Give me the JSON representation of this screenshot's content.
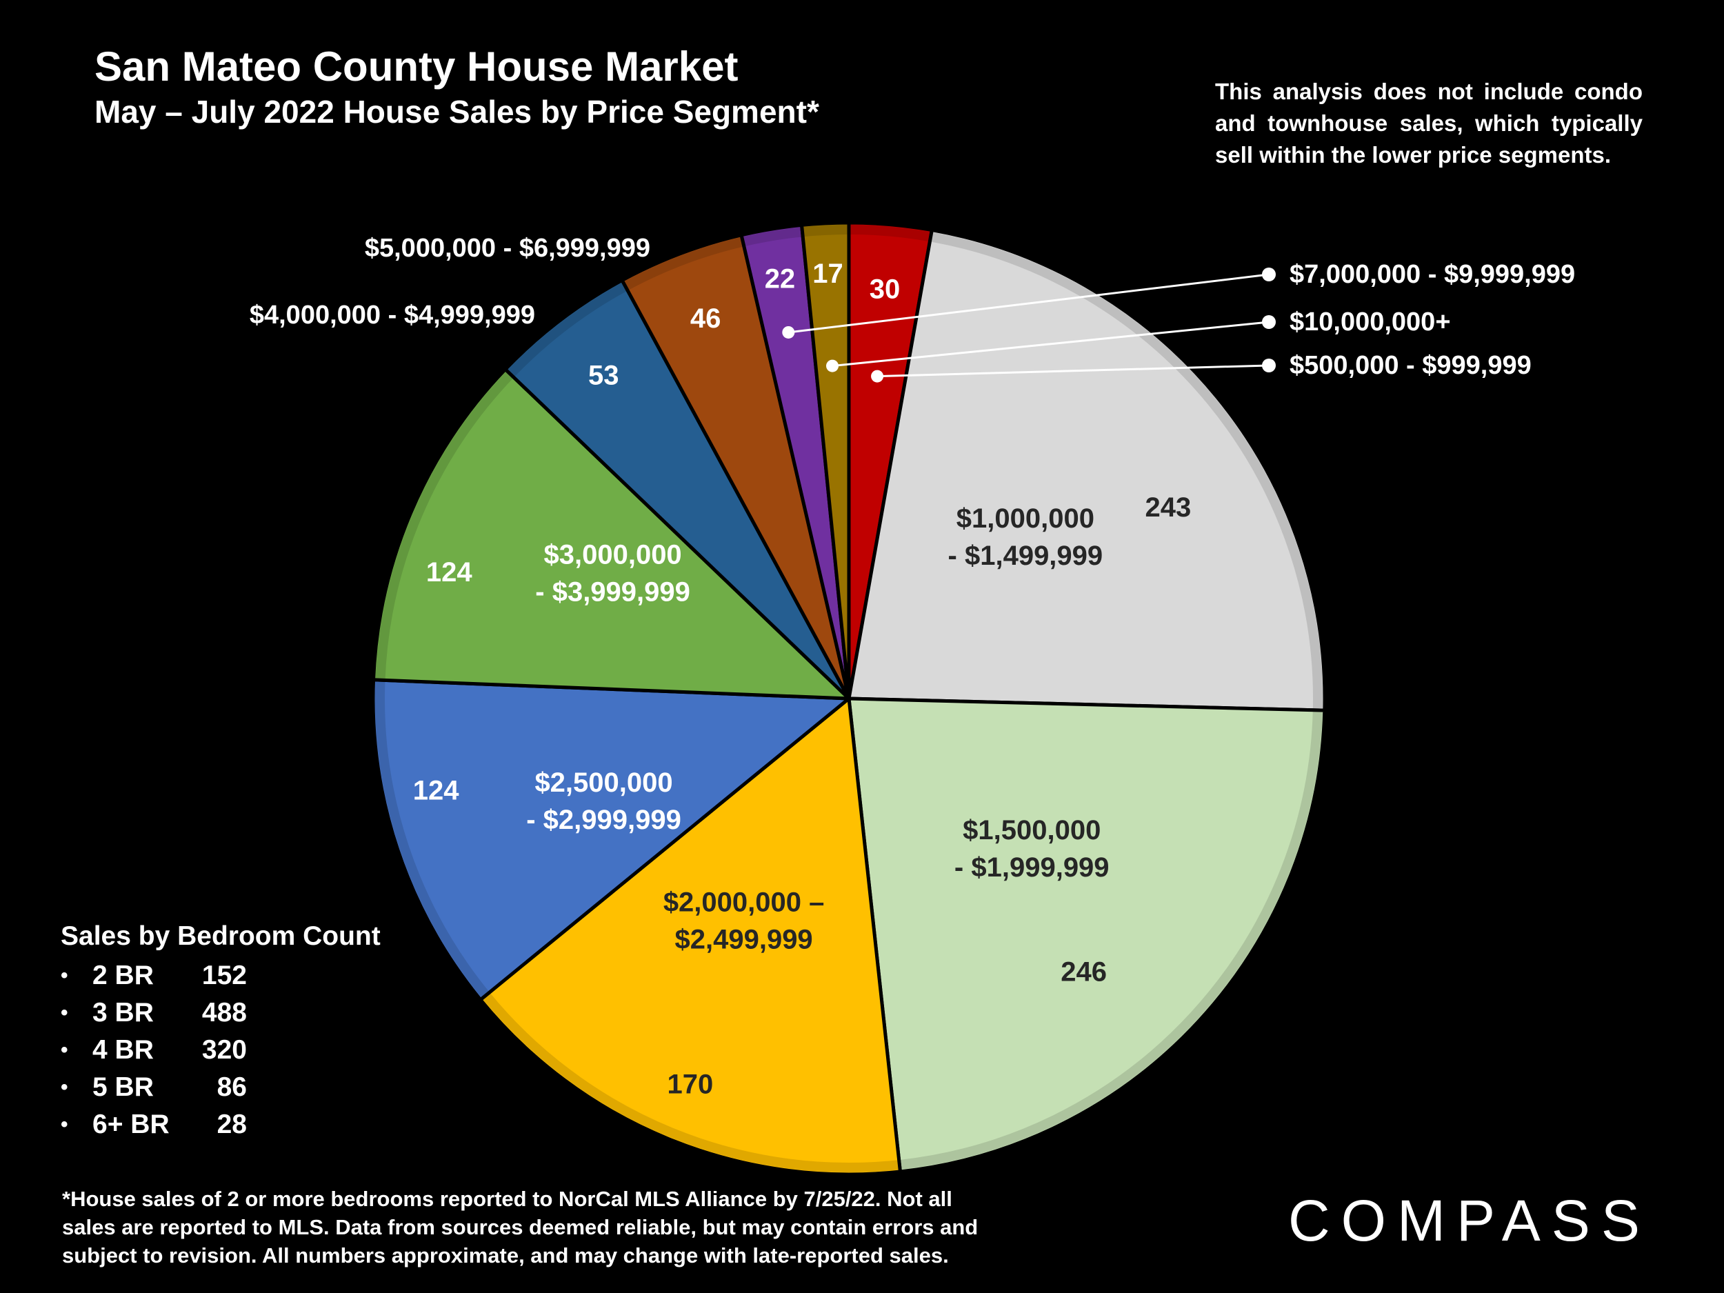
{
  "header": {
    "title": "San Mateo County House Market",
    "subtitle": "May – July 2022 House Sales by Price Segment*"
  },
  "note": "This analysis does not include condo and townhouse sales, which typically sell within the lower price segments.",
  "bedrooms": {
    "title": "Sales by Bedroom Count",
    "items": [
      {
        "label": "2 BR",
        "count": "152"
      },
      {
        "label": "3 BR",
        "count": "488"
      },
      {
        "label": "4 BR",
        "count": "320"
      },
      {
        "label": "5 BR",
        "count": "86"
      },
      {
        "label": "6+ BR",
        "count": "28"
      }
    ]
  },
  "footnote": "*House sales of 2 or more bedrooms reported to NorCal MLS Alliance by 7/25/22. Not all sales are reported to MLS. Data from sources deemed reliable, but may contain errors and subject to revision. All numbers approximate, and may change with late-reported sales.",
  "logo": "COMPASS",
  "chart_data": {
    "type": "pie",
    "title": "May – July 2022 House Sales by Price Segment*",
    "start": "top, clockwise",
    "slices": [
      {
        "label": "$500,000 - $999,999",
        "value": 30,
        "color": "#C00000"
      },
      {
        "label": "$1,000,000 - $1,499,999",
        "value": 243,
        "color": "#D9D9D9"
      },
      {
        "label": "$1,500,000 - $1,999,999",
        "value": 246,
        "color": "#C5E0B4"
      },
      {
        "label": "$2,000,000 – $2,499,999",
        "value": 170,
        "color": "#FFC000"
      },
      {
        "label": "$2,500,000 - $2,999,999",
        "value": 124,
        "color": "#4472C4"
      },
      {
        "label": "$3,000,000 - $3,999,999",
        "value": 124,
        "color": "#70AD47"
      },
      {
        "label": "$4,000,000 - $4,999,999",
        "value": 53,
        "color": "#255E91"
      },
      {
        "label": "$5,000,000 - $6,999,999",
        "value": 46,
        "color": "#9E480E"
      },
      {
        "label": "$7,000,000 - $9,999,999",
        "value": 22,
        "color": "#7030A0"
      },
      {
        "label": "$10,000,000+",
        "value": 17,
        "color": "#997300"
      }
    ],
    "slice_label_lines": [
      [
        "$500,000 - $999,999"
      ],
      [
        "$1,000,000",
        "- $1,499,999"
      ],
      [
        "$1,500,000",
        "- $1,999,999"
      ],
      [
        "$2,000,000 –",
        "$2,499,999"
      ],
      [
        "$2,500,000",
        "- $2,999,999"
      ],
      [
        "$3,000,000",
        "- $3,999,999"
      ],
      [
        "$4,000,000 - $4,999,999"
      ],
      [
        "$5,000,000 - $6,999,999"
      ],
      [
        "$7,000,000 - $9,999,999"
      ],
      [
        "$10,000,000+"
      ]
    ]
  }
}
